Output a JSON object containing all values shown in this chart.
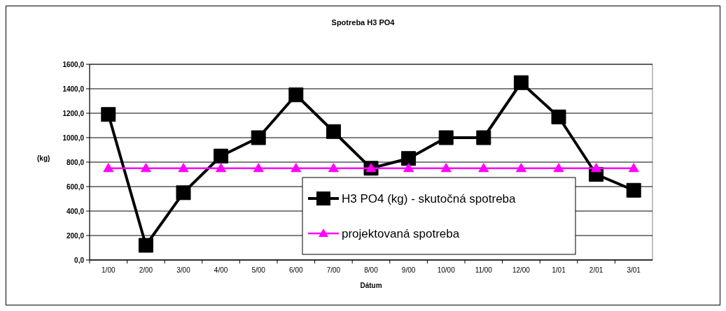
{
  "chart_data": {
    "type": "line",
    "title": "Spotreba H3 PO4",
    "xlabel": "Dátum",
    "ylabel": "(kg)",
    "categories": [
      "1/00",
      "2/00",
      "3/00",
      "4/00",
      "5/00",
      "6/00",
      "7/00",
      "8/00",
      "9/00",
      "10/00",
      "11/00",
      "12/00",
      "1/01",
      "2/01",
      "3/01"
    ],
    "series": [
      {
        "name": "H3 PO4 (kg) - skutočná spotreba",
        "color": "#000000",
        "marker": "square",
        "values": [
          1190,
          120,
          550,
          850,
          1000,
          1350,
          1050,
          750,
          830,
          1000,
          1000,
          1450,
          1170,
          700,
          570
        ]
      },
      {
        "name": "projektovaná spotreba",
        "color": "#ff00ff",
        "marker": "triangle",
        "values": [
          750,
          750,
          750,
          750,
          750,
          750,
          750,
          750,
          750,
          750,
          750,
          750,
          750,
          750,
          750
        ]
      }
    ],
    "ylim": [
      0,
      1600
    ],
    "yticks": [
      {
        "value": 0,
        "label": "0,0"
      },
      {
        "value": 200,
        "label": "200,0"
      },
      {
        "value": 400,
        "label": "400,0"
      },
      {
        "value": 600,
        "label": "600,0"
      },
      {
        "value": 800,
        "label": "800,0"
      },
      {
        "value": 1000,
        "label": "1000,0"
      },
      {
        "value": 1200,
        "label": "1200,0"
      },
      {
        "value": 1400,
        "label": "1400,0"
      },
      {
        "value": 1600,
        "label": "1600,0"
      }
    ],
    "grid": "y",
    "legend": "bottom right",
    "line_style": "solid"
  }
}
